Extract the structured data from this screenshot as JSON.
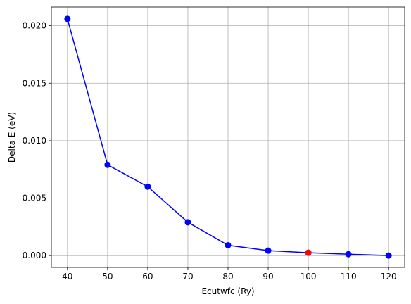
{
  "chart_data": {
    "type": "line",
    "xlabel": "Ecutwfc (Ry)",
    "ylabel": "Delta E (eV)",
    "x": [
      40,
      50,
      60,
      70,
      80,
      90,
      100,
      110,
      120
    ],
    "series": [
      {
        "values": [
          0.0206,
          0.0079,
          0.006,
          0.0029,
          0.0009,
          0.00043,
          0.00025,
          0.00012,
          0.0
        ],
        "line_color": "#0000ff",
        "marker_color": "#0000ff"
      }
    ],
    "highlight_points": [
      {
        "x": 100,
        "y": 0.00025,
        "color": "#ff0000"
      }
    ],
    "xticks": [
      40,
      50,
      60,
      70,
      80,
      90,
      100,
      110,
      120
    ],
    "xtick_labels": [
      "40",
      "50",
      "60",
      "70",
      "80",
      "90",
      "100",
      "110",
      "120"
    ],
    "yticks": [
      0.0,
      0.005,
      0.01,
      0.015,
      0.02
    ],
    "ytick_labels": [
      "0.000",
      "0.005",
      "0.010",
      "0.015",
      "0.020"
    ],
    "xlim": [
      36,
      124
    ],
    "ylim": [
      -0.00103,
      0.02163
    ],
    "grid": true,
    "legend": false
  }
}
